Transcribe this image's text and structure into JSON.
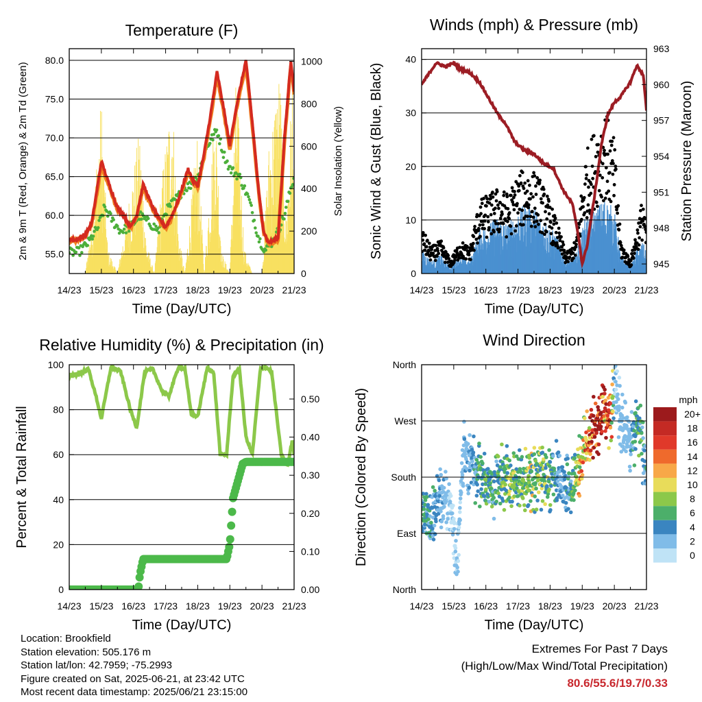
{
  "chart_data": [
    {
      "type": "line",
      "title": "Temperature (F)",
      "xlabel": "Time (Day/UTC)",
      "ylabel": "2m & 9m T (Red, Orange) & 2m Td (Green)",
      "y2label": "Solar Insolation (Yellow)",
      "x_ticks": [
        "14/23",
        "15/23",
        "16/23",
        "17/23",
        "18/23",
        "19/23",
        "20/23",
        "21/23"
      ],
      "y_ticks": [
        "55.0",
        "60.0",
        "65.0",
        "70.0",
        "75.0",
        "80.0"
      ],
      "y2_ticks": [
        "0",
        "200",
        "400",
        "600",
        "800",
        "1000"
      ],
      "ylim": [
        52.5,
        81.5
      ],
      "y2lim": [
        0,
        1060
      ],
      "grid": true,
      "series": [
        {
          "name": "2m T",
          "color": "#d42a20",
          "x": [
            0,
            0.2,
            0.5,
            0.7,
            0.85,
            1.0,
            1.2,
            1.5,
            1.7,
            1.9,
            2.1,
            2.3,
            2.6,
            2.8,
            3.0,
            3.2,
            3.4,
            3.7,
            3.85,
            4.0,
            4.2,
            4.4,
            4.6,
            4.8,
            5.0,
            5.2,
            5.5,
            5.7,
            5.9,
            6.05,
            6.2,
            6.5,
            6.7,
            6.9,
            7.0
          ],
          "y": [
            57.0,
            56.8,
            57.5,
            59.0,
            63.0,
            67.0,
            64.5,
            61.0,
            60.0,
            58.5,
            60.0,
            64.0,
            61.0,
            59.5,
            58.5,
            60.0,
            62.0,
            66.0,
            64.5,
            63.8,
            68.0,
            73.0,
            78.5,
            74.0,
            69.0,
            74.0,
            80.0,
            72.0,
            63.0,
            58.0,
            56.5,
            57.0,
            70.0,
            80.0,
            76.0
          ]
        },
        {
          "name": "9m T",
          "color": "#f08020",
          "x": [
            0,
            0.2,
            0.5,
            0.7,
            0.85,
            1.0,
            1.2,
            1.5,
            1.7,
            1.9,
            2.1,
            2.3,
            2.6,
            2.8,
            3.0,
            3.2,
            3.4,
            3.7,
            3.85,
            4.0,
            4.2,
            4.4,
            4.6,
            4.8,
            5.0,
            5.2,
            5.5,
            5.7,
            5.9,
            6.05,
            6.2,
            6.5,
            6.7,
            6.9,
            7.0
          ],
          "y": [
            56.9,
            56.7,
            57.3,
            58.8,
            62.5,
            66.5,
            64.2,
            60.8,
            59.8,
            58.3,
            59.8,
            63.5,
            60.8,
            59.3,
            58.3,
            59.8,
            61.8,
            65.5,
            64.2,
            63.6,
            67.5,
            72.5,
            78.0,
            73.5,
            68.5,
            73.5,
            79.5,
            71.5,
            62.8,
            57.8,
            56.3,
            56.8,
            69.5,
            79.5,
            75.5
          ]
        },
        {
          "name": "2m Td",
          "color": "#4caf3a",
          "x": [
            0,
            0.3,
            0.6,
            0.9,
            1.1,
            1.4,
            1.6,
            1.9,
            2.2,
            2.5,
            2.8,
            3.0,
            3.3,
            3.6,
            3.8,
            4.0,
            4.3,
            4.6,
            4.8,
            5.0,
            5.3,
            5.6,
            5.9,
            6.1,
            6.4,
            6.7,
            6.9,
            7.0
          ],
          "y": [
            55.2,
            55.3,
            56.5,
            58.5,
            61.0,
            59.0,
            58.0,
            58.5,
            60.0,
            59.0,
            58.0,
            60.5,
            62.0,
            63.5,
            64.0,
            65.0,
            69.0,
            71.0,
            68.0,
            66.0,
            65.0,
            62.0,
            57.0,
            55.5,
            57.0,
            60.0,
            63.5,
            65.0
          ]
        }
      ],
      "solar_insolation": {
        "name": "Solar Insolation",
        "color": "#f8e060",
        "x": [
          0,
          0.5,
          0.75,
          1.0,
          1.2,
          1.5,
          1.8,
          2.2,
          2.4,
          2.65,
          2.9,
          3.2,
          3.4,
          3.6,
          3.8,
          4.0,
          4.2,
          4.55,
          4.75,
          5.0,
          5.2,
          5.45,
          5.7,
          6.0,
          6.2,
          6.55,
          6.75,
          6.95,
          7.0
        ],
        "y": [
          0,
          0,
          350,
          850,
          120,
          0,
          300,
          700,
          150,
          0,
          480,
          900,
          200,
          0,
          350,
          700,
          0,
          850,
          100,
          0,
          980,
          120,
          0,
          0,
          600,
          1000,
          250,
          980,
          0
        ]
      }
    },
    {
      "type": "line",
      "title": "Winds (mph) & Pressure (mb)",
      "xlabel": "Time (Day/UTC)",
      "ylabel": "Sonic Wind & Gust (Blue, Black)",
      "y2label": "Station Pressure (Maroon)",
      "x_ticks": [
        "14/23",
        "15/23",
        "16/23",
        "17/23",
        "18/23",
        "19/23",
        "20/23",
        "21/23"
      ],
      "y_ticks": [
        "0",
        "10",
        "20",
        "30",
        "40"
      ],
      "y2_ticks": [
        "945",
        "948",
        "951",
        "954",
        "957",
        "960",
        "963"
      ],
      "ylim": [
        0,
        42
      ],
      "y2lim": [
        944.2,
        963
      ],
      "grid": true,
      "series": [
        {
          "name": "Sonic Wind",
          "color": "#4a90d0",
          "x": [
            0,
            0.3,
            0.6,
            0.9,
            1.2,
            1.5,
            1.8,
            2.1,
            2.4,
            2.7,
            3.0,
            3.3,
            3.6,
            3.9,
            4.2,
            4.5,
            4.8,
            5.1,
            5.4,
            5.7,
            6.0,
            6.2,
            6.5,
            6.7,
            6.9,
            7.0
          ],
          "y": [
            4,
            2,
            3,
            1,
            3,
            2,
            7,
            8,
            9,
            8,
            10,
            11,
            10,
            8,
            6,
            2,
            3,
            9,
            10,
            12,
            10,
            3,
            1,
            4,
            5,
            3
          ]
        },
        {
          "name": "Gust",
          "color": "#000000",
          "x": [
            0,
            0.3,
            0.6,
            0.9,
            1.2,
            1.5,
            1.8,
            2.1,
            2.4,
            2.7,
            3.0,
            3.3,
            3.6,
            3.9,
            4.2,
            4.5,
            4.8,
            5.1,
            5.4,
            5.7,
            6.0,
            6.2,
            6.5,
            6.7,
            6.9,
            7.0
          ],
          "y": [
            7,
            4,
            5,
            2,
            5,
            4,
            11,
            12,
            13,
            12,
            15,
            16,
            15,
            12,
            8,
            3,
            5,
            18,
            22,
            25,
            20,
            5,
            2,
            7,
            12,
            6
          ]
        },
        {
          "name": "Station Pressure",
          "color": "#9c1d24",
          "x": [
            0,
            0.2,
            0.45,
            0.75,
            1.0,
            1.2,
            1.5,
            1.8,
            2.1,
            2.4,
            2.6,
            2.9,
            3.2,
            3.5,
            3.8,
            4.1,
            4.4,
            4.7,
            4.9,
            5.0,
            5.15,
            5.4,
            5.6,
            5.8,
            6.0,
            6.2,
            6.5,
            6.7,
            6.9,
            7.0
          ],
          "y": [
            960.0,
            960.8,
            961.8,
            961.5,
            961.8,
            961.3,
            961.0,
            960.2,
            958.8,
            957.4,
            956.8,
            955.2,
            954.5,
            954.2,
            953.4,
            953.0,
            951.2,
            950.0,
            947.0,
            945.0,
            946.5,
            951.0,
            955.0,
            957.5,
            958.5,
            959.0,
            960.2,
            961.6,
            960.8,
            957.8
          ]
        }
      ]
    },
    {
      "type": "line",
      "title": "Relative Humidity (%) & Precipitation (in)",
      "xlabel": "Time (Day/UTC)",
      "ylabel": "Percent & Total Rainfall",
      "x_ticks": [
        "14/23",
        "15/23",
        "16/23",
        "17/23",
        "18/23",
        "19/23",
        "20/23",
        "21/23"
      ],
      "y_ticks": [
        "0",
        "20",
        "40",
        "60",
        "80",
        "100"
      ],
      "y2_ticks": [
        "0.00",
        "0.10",
        "0.20",
        "0.30",
        "0.40",
        "0.50"
      ],
      "ylim": [
        0,
        100
      ],
      "y2lim": [
        0,
        0.59
      ],
      "grid": true,
      "series": [
        {
          "name": "Relative Humidity",
          "color": "#8cc84a",
          "x": [
            0,
            0.3,
            0.6,
            0.85,
            1.0,
            1.3,
            1.6,
            1.9,
            2.1,
            2.35,
            2.6,
            2.9,
            3.1,
            3.4,
            3.6,
            3.8,
            4.0,
            4.3,
            4.5,
            4.7,
            4.9,
            5.1,
            5.3,
            5.5,
            5.7,
            5.95,
            6.1,
            6.3,
            6.6,
            6.8,
            6.95,
            7.0
          ],
          "y": [
            95,
            96,
            98,
            85,
            76,
            99,
            97,
            80,
            72,
            97,
            98,
            88,
            86,
            99,
            98,
            78,
            77,
            99,
            96,
            60,
            60,
            95,
            98,
            68,
            60,
            98,
            99,
            97,
            60,
            55,
            67,
            60
          ]
        },
        {
          "name": "Total Precipitation",
          "color": "#4cb94a",
          "x": [
            0,
            1.5,
            2.15,
            2.2,
            2.3,
            3.0,
            4.0,
            4.9,
            5.0,
            5.05,
            5.1,
            5.2,
            5.3,
            5.4,
            5.5,
            6.0,
            7.0
          ],
          "y": [
            0.0,
            0.0,
            0.0,
            0.04,
            0.08,
            0.08,
            0.08,
            0.08,
            0.12,
            0.18,
            0.24,
            0.27,
            0.3,
            0.33,
            0.335,
            0.335,
            0.335
          ]
        }
      ]
    },
    {
      "type": "scatter",
      "title": "Wind Direction",
      "xlabel": "Time (Day/UTC)",
      "ylabel": "Direction (Colored By Speed)",
      "x_ticks": [
        "14/23",
        "15/23",
        "16/23",
        "17/23",
        "18/23",
        "19/23",
        "20/23",
        "21/23"
      ],
      "y_ticks": [
        "North",
        "East",
        "South",
        "West",
        "North"
      ],
      "ylim": [
        0,
        360
      ],
      "grid": true,
      "legend_title": "mph",
      "legend_labels": [
        "20+",
        "18",
        "16",
        "14",
        "12",
        "10",
        "8",
        "6",
        "4",
        "2",
        "0"
      ],
      "legend_colors": [
        "#9c1a1c",
        "#c42a24",
        "#e0392a",
        "#ef6a2c",
        "#f8a848",
        "#e8dc5a",
        "#8cc84a",
        "#4caf6a",
        "#3a85c0",
        "#80bce8",
        "#bfe3f6"
      ],
      "legend_placement": "right",
      "series": [
        {
          "name": "Wind Direction",
          "x": [
            0,
            0.3,
            0.6,
            0.9,
            1.1,
            1.3,
            1.6,
            1.9,
            2.2,
            2.5,
            2.8,
            3.1,
            3.4,
            3.7,
            4.0,
            4.3,
            4.6,
            4.9,
            5.1,
            5.3,
            5.5,
            5.7,
            5.9,
            6.0,
            6.2,
            6.5,
            6.7,
            6.85,
            7.0
          ],
          "y": [
            130,
            110,
            150,
            140,
            40,
            220,
            200,
            180,
            160,
            185,
            175,
            170,
            175,
            180,
            175,
            185,
            160,
            200,
            230,
            250,
            270,
            275,
            270,
            330,
            280,
            230,
            265,
            240,
            170
          ],
          "speed": [
            5,
            4,
            3,
            1,
            1,
            2,
            3,
            6,
            5,
            6,
            7,
            6,
            8,
            7,
            6,
            3,
            4,
            10,
            12,
            18,
            20,
            17,
            14,
            1,
            2,
            2,
            6,
            5,
            4
          ]
        }
      ]
    }
  ],
  "footer": {
    "location": "Location: Brookfield",
    "elevation": "Station elevation: 505.176 m",
    "latlon": "Station lat/lon: 42.7959; -75.2993",
    "created": "Figure created on Sat, 2025-06-21, at 23:42 UTC",
    "recent": "Most recent data timestamp: 2025/06/21 23:15:00"
  },
  "extremes": {
    "title": "Extremes For Past 7 Days",
    "subtitle": "(High/Low/Max Wind/Total Precipitation)",
    "values": "80.6/55.6/19.7/0.33"
  }
}
